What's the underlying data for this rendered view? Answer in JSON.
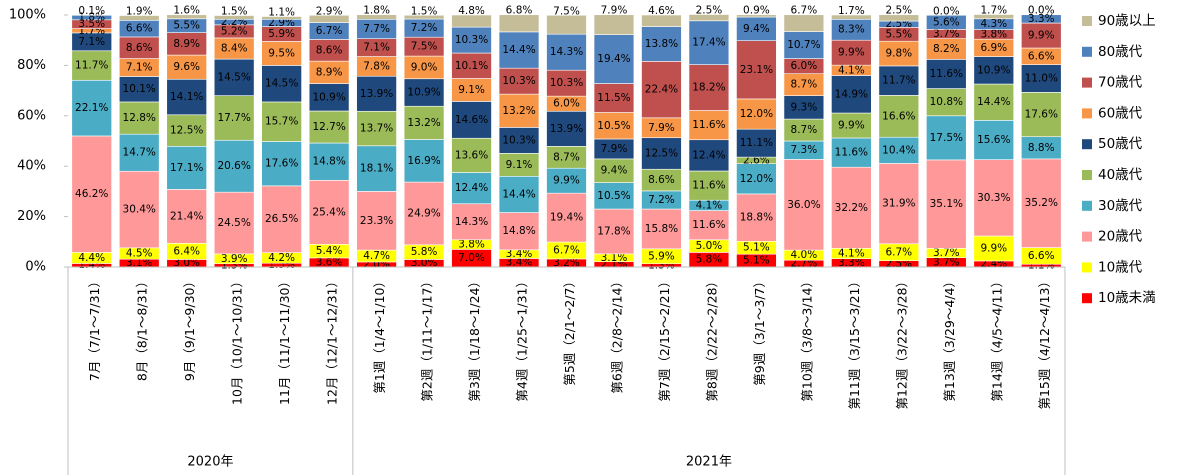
{
  "chart_data": {
    "type": "stacked_bar",
    "categories": [
      "7月（7/1～7/31）",
      "8月（8/1～8/31）",
      "9月（9/1～9/30）",
      "10月（10/1～10/31）",
      "11月（11/1～11/30）",
      "12月（12/1～12/31）",
      "第1週（1/4～1/10）",
      "第2週（1/11～1/17）",
      "第3週（1/18～1/24）",
      "第4週（1/25～1/31）",
      "第5週（2/1～2/7）",
      "第6週（2/8～2/14）",
      "第7週（2/15～2/21）",
      "第8週（2/22～2/28）",
      "第9週（3/1～3/7）",
      "第10週（3/8～3/14）",
      "第11週（3/15～3/21）",
      "第12週（3/22～3/28）",
      "第13週（3/29～4/4）",
      "第14週（4/5～4/11）",
      "第15週（4/12～4/13）"
    ],
    "groups": [
      {
        "label": "2020年",
        "count": 6
      },
      {
        "label": "2021年",
        "count": 15
      }
    ],
    "ylim": [
      0,
      100
    ],
    "yticks": [
      {
        "value": 0,
        "label": "0%"
      },
      {
        "value": 20,
        "label": "20%"
      },
      {
        "value": 40,
        "label": "40%"
      },
      {
        "value": 60,
        "label": "60%"
      },
      {
        "value": 80,
        "label": "80%"
      },
      {
        "value": 100,
        "label": "100%"
      }
    ],
    "series": [
      {
        "name": "10歳未満",
        "color": "#ff0000",
        "values": [
          1.4,
          3.1,
          3.0,
          1.3,
          1.5,
          3.6,
          2.0,
          3.0,
          7.0,
          3.4,
          3.2,
          2.1,
          1.3,
          5.8,
          5.1,
          2.7,
          3.3,
          2.5,
          3.7,
          2.4,
          1.1
        ],
        "value_labels": [
          "1.4%",
          "3.1%",
          "3.0%",
          "1.3%",
          "1.5%",
          "3.6%",
          "2.0%",
          "3.0%",
          "7.0%",
          "3.4%",
          "3.2%",
          "2.1%",
          "1.3%",
          "5.8%",
          "5.1%",
          "2.7%",
          "3.3%",
          "2.5%",
          "3.7%",
          "2.4%",
          "1.1%"
        ]
      },
      {
        "name": "10歳代",
        "color": "#ffff00",
        "values": [
          4.4,
          4.5,
          6.4,
          3.9,
          4.2,
          5.4,
          4.7,
          5.8,
          3.8,
          3.4,
          6.7,
          3.1,
          5.9,
          5.0,
          5.1,
          4.0,
          4.1,
          6.7,
          3.7,
          9.9,
          6.6
        ],
        "value_labels": [
          "4.4%",
          "4.5%",
          "6.4%",
          "3.9%",
          "4.2%",
          "5.4%",
          "4.7%",
          "5.8%",
          "3.8%",
          "3.4%",
          "6.7%",
          "3.1%",
          "5.9%",
          "5.0%",
          "5.1%",
          "4.0%",
          "4.1%",
          "6.7%",
          "3.7%",
          "9.9%",
          "6.6%"
        ]
      },
      {
        "name": "20歳代",
        "color": "#ff9999",
        "values": [
          46.2,
          30.4,
          21.4,
          24.5,
          26.5,
          25.4,
          23.3,
          24.9,
          14.3,
          14.8,
          19.4,
          17.8,
          15.8,
          11.6,
          18.8,
          36.0,
          32.2,
          31.9,
          35.1,
          30.3,
          35.2
        ],
        "value_labels": [
          "46.2%",
          "30.4%",
          "21.4%",
          "24.5%",
          "26.5%",
          "25.4%",
          "23.3%",
          "24.9%",
          "14.3%",
          "14.8%",
          "19.4%",
          "17.8%",
          "15.8%",
          "11.6%",
          "18.8%",
          "36.0%",
          "32.2%",
          "31.9%",
          "35.1%",
          "30.3%",
          "35.2%"
        ]
      },
      {
        "name": "30歳代",
        "color": "#4bacc6",
        "values": [
          22.1,
          14.7,
          17.1,
          20.6,
          17.6,
          14.8,
          18.1,
          16.9,
          12.4,
          14.4,
          9.9,
          10.5,
          7.2,
          4.1,
          12.0,
          7.3,
          11.6,
          10.4,
          17.5,
          15.6,
          8.8
        ],
        "value_labels": [
          "22.1%",
          "14.7%",
          "17.1%",
          "20.6%",
          "17.6%",
          "14.8%",
          "18.1%",
          "16.9%",
          "12.4%",
          "14.4%",
          "9.9%",
          "10.5%",
          "7.2%",
          "4.1%",
          "12.0%",
          "7.3%",
          "11.6%",
          "10.4%",
          "17.5%",
          "15.6%",
          "8.8%"
        ]
      },
      {
        "name": "40歳代",
        "color": "#9bbb59",
        "values": [
          11.7,
          12.8,
          12.5,
          17.7,
          15.7,
          12.7,
          13.7,
          13.2,
          13.6,
          9.1,
          8.7,
          9.4,
          8.6,
          11.6,
          2.6,
          8.7,
          9.9,
          16.6,
          10.8,
          14.4,
          17.6
        ],
        "value_labels": [
          "11.7%",
          "12.8%",
          "12.5%",
          "17.7%",
          "15.7%",
          "12.7%",
          "13.7%",
          "13.2%",
          "13.6%",
          "9.1%",
          "8.7%",
          "9.4%",
          "8.6%",
          "11.6%",
          "2.6%",
          "8.7%",
          "9.9%",
          "16.6%",
          "10.8%",
          "14.4%",
          "17.6%"
        ]
      },
      {
        "name": "50歳代",
        "color": "#1f497d",
        "values": [
          7.1,
          10.1,
          14.1,
          14.5,
          14.5,
          10.9,
          13.9,
          10.9,
          14.6,
          10.3,
          13.9,
          7.9,
          12.5,
          12.4,
          11.1,
          9.3,
          14.9,
          11.7,
          11.6,
          10.9,
          11.0
        ],
        "value_labels": [
          "7.1%",
          "10.1%",
          "14.1%",
          "14.5%",
          "14.5%",
          "10.9%",
          "13.9%",
          "10.9%",
          "14.6%",
          "10.3%",
          "13.9%",
          "7.9%",
          "12.5%",
          "12.4%",
          "11.1%",
          "9.3%",
          "14.9%",
          "11.7%",
          "11.6%",
          "10.9%",
          "11.0%"
        ]
      },
      {
        "name": "60歳代",
        "color": "#f79646",
        "values": [
          1.7,
          7.1,
          9.6,
          8.4,
          9.5,
          8.9,
          7.8,
          9.0,
          9.1,
          13.2,
          6.0,
          10.5,
          7.9,
          11.6,
          12.0,
          8.7,
          4.1,
          9.8,
          8.2,
          6.9,
          6.6
        ],
        "value_labels": [
          "1.7%",
          "7.1%",
          "9.6%",
          "8.4%",
          "9.5%",
          "8.9%",
          "7.8%",
          "9.0%",
          "9.1%",
          "13.2%",
          "6.0%",
          "10.5%",
          "7.9%",
          "11.6%",
          "12.0%",
          "8.7%",
          "4.1%",
          "9.8%",
          "8.2%",
          "6.9%",
          "6.6%"
        ]
      },
      {
        "name": "70歳代",
        "color": "#c0504d",
        "values": [
          3.5,
          8.6,
          8.9,
          5.2,
          5.9,
          8.6,
          7.1,
          7.5,
          10.1,
          10.3,
          10.3,
          11.5,
          22.4,
          18.2,
          23.1,
          6.0,
          9.9,
          5.5,
          3.7,
          3.8,
          9.9
        ],
        "value_labels": [
          "3.5%",
          "8.6%",
          "8.9%",
          "5.2%",
          "5.9%",
          "8.6%",
          "7.1%",
          "7.5%",
          "10.1%",
          "10.3%",
          "10.3%",
          "11.5%",
          "22.4%",
          "18.2%",
          "23.1%",
          "6.0%",
          "9.9%",
          "5.5%",
          "3.7%",
          "3.8%",
          "9.9%"
        ]
      },
      {
        "name": "80歳代",
        "color": "#4f81bd",
        "values": [
          1.8,
          6.6,
          5.5,
          2.2,
          2.9,
          6.7,
          7.7,
          7.2,
          10.3,
          14.4,
          14.3,
          19.4,
          13.8,
          17.4,
          9.4,
          10.7,
          8.3,
          2.5,
          5.6,
          4.3,
          3.3
        ],
        "value_labels": [
          "1.8%",
          "6.6%",
          "5.5%",
          "2.2%",
          "2.9%",
          "6.7%",
          "7.7%",
          "7.2%",
          "10.3%",
          "14.4%",
          "14.3%",
          "19.4%",
          "13.8%",
          "17.4%",
          "9.4%",
          "10.7%",
          "8.3%",
          "2.5%",
          "5.6%",
          "4.3%",
          "3.3%"
        ]
      },
      {
        "name": "90歳以上",
        "color": "#c4bd97",
        "values": [
          0.1,
          1.9,
          1.6,
          1.5,
          1.1,
          2.9,
          1.8,
          1.5,
          4.8,
          6.8,
          7.5,
          7.9,
          4.6,
          2.5,
          0.9,
          6.7,
          1.7,
          2.5,
          0.0,
          1.7,
          0.0
        ],
        "value_labels": [
          "0.1%",
          "1.9%",
          "1.6%",
          "1.5%",
          "1.1%",
          "2.9%",
          "1.8%",
          "1.5%",
          "4.8%",
          "6.8%",
          "7.5%",
          "7.9%",
          "4.6%",
          "2.5%",
          "0.9%",
          "6.7%",
          "1.7%",
          "2.5%",
          "0.0%",
          "1.7%",
          "0.0%"
        ]
      }
    ],
    "legend": "right"
  }
}
